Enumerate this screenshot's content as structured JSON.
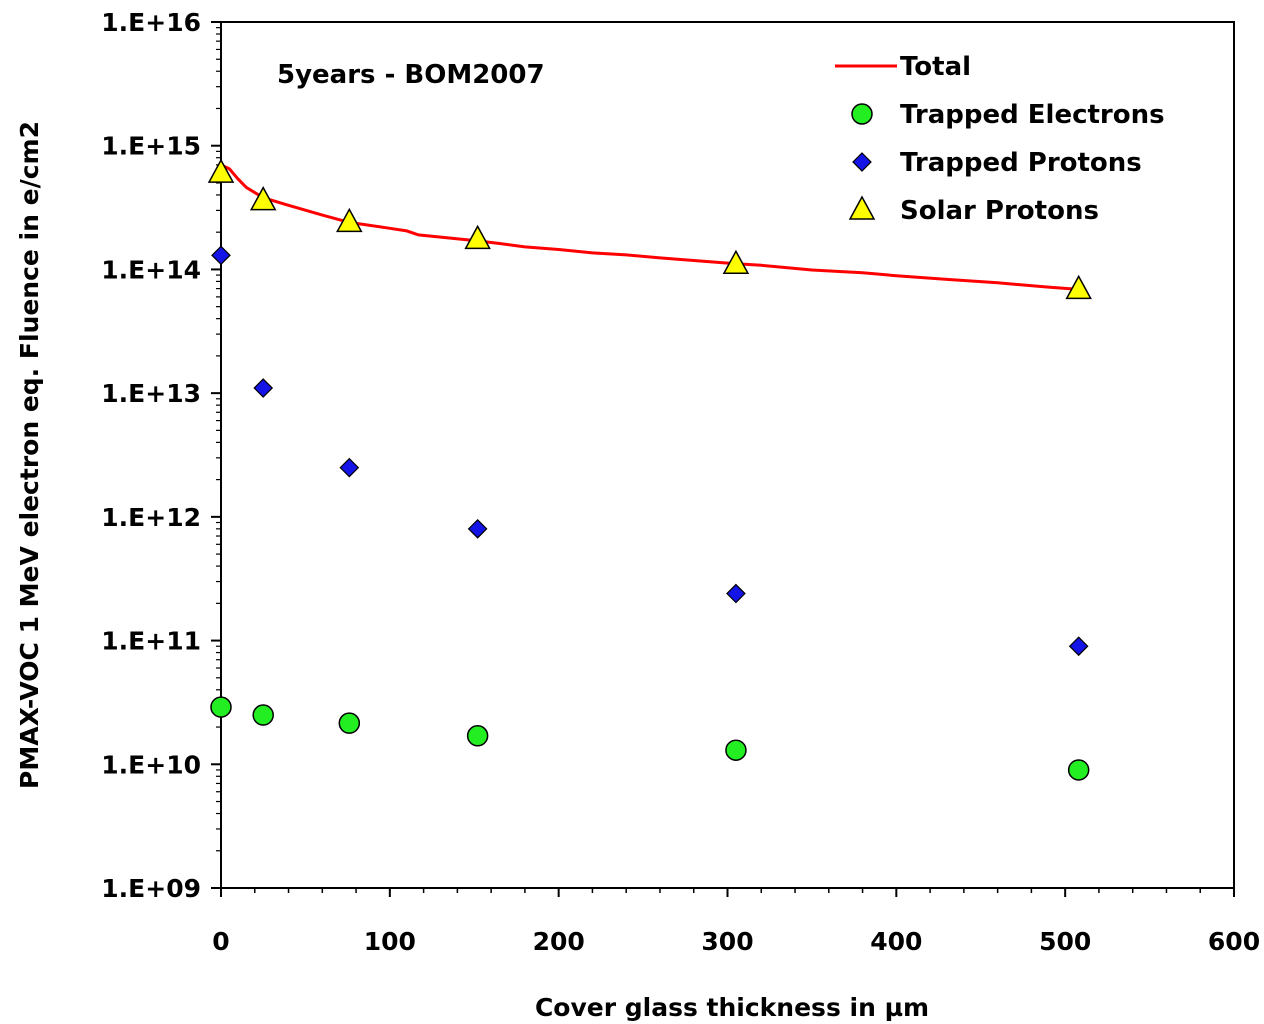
{
  "chart_data": {
    "type": "scatter",
    "title": "",
    "annotation": "5years - BOM2007",
    "xlabel": "Cover glass thickness in µm",
    "ylabel": "PMAX-VOC 1 MeV electron eq. Fluence in e/cm2",
    "xlim": [
      0,
      600
    ],
    "ylim": [
      1000000000.0,
      1e+16
    ],
    "yscale": "log",
    "grid": false,
    "legend_position": "top-right",
    "x_ticks": [
      0,
      100,
      200,
      300,
      400,
      500,
      600
    ],
    "x_tick_labels": [
      "0",
      "100",
      "200",
      "300",
      "400",
      "500",
      "600"
    ],
    "y_ticks": [
      1000000000.0,
      10000000000.0,
      100000000000.0,
      1000000000000.0,
      10000000000000.0,
      100000000000000.0,
      1000000000000000.0,
      1e+16
    ],
    "y_tick_labels": [
      "1.E+09",
      "1.E+10",
      "1.E+11",
      "1.E+12",
      "1.E+13",
      "1.E+14",
      "1.E+15",
      "1.E+16"
    ],
    "series": [
      {
        "name": "Total",
        "kind": "line",
        "color": "#ff0000",
        "x": [
          0,
          5,
          10,
          15,
          25,
          40,
          60,
          76,
          100,
          110,
          117,
          152,
          165,
          180,
          200,
          220,
          240,
          260,
          280,
          305,
          320,
          350,
          380,
          400,
          430,
          460,
          490,
          508
        ],
        "y": [
          700000000000000.0,
          650000000000000.0,
          540000000000000.0,
          460000000000000.0,
          380000000000000.0,
          330000000000000.0,
          275000000000000.0,
          240000000000000.0,
          215000000000000.0,
          205000000000000.0,
          190000000000000.0,
          170000000000000.0,
          162000000000000.0,
          152000000000000.0,
          145000000000000.0,
          136000000000000.0,
          131000000000000.0,
          124000000000000.0,
          118000000000000.0,
          111000000000000.0,
          108000000000000.0,
          99000000000000.0,
          94000000000000.0,
          89000000000000.0,
          83000000000000.0,
          78000000000000.0,
          72000000000000.0,
          69000000000000.0
        ]
      },
      {
        "name": "Trapped Electrons",
        "kind": "marker",
        "marker": "circle",
        "color": "#22ee22",
        "x": [
          0,
          25,
          76,
          152,
          305,
          508
        ],
        "y": [
          29000000000.0,
          25000000000.0,
          21500000000.0,
          17000000000.0,
          13000000000.0,
          9000000000.0
        ]
      },
      {
        "name": "Trapped Protons",
        "kind": "marker",
        "marker": "diamond",
        "color": "#1414e6",
        "x": [
          0,
          25,
          76,
          152,
          305,
          508
        ],
        "y": [
          130000000000000.0,
          11000000000000.0,
          2500000000000.0,
          800000000000.0,
          240000000000.0,
          90000000000.0
        ]
      },
      {
        "name": "Solar Protons",
        "kind": "marker",
        "marker": "triangle",
        "color": "#ffff00",
        "x": [
          0,
          25,
          76,
          152,
          305,
          508
        ],
        "y": [
          600000000000000.0,
          360000000000000.0,
          240000000000000.0,
          175000000000000.0,
          110000000000000.0,
          69000000000000.0
        ]
      }
    ]
  }
}
